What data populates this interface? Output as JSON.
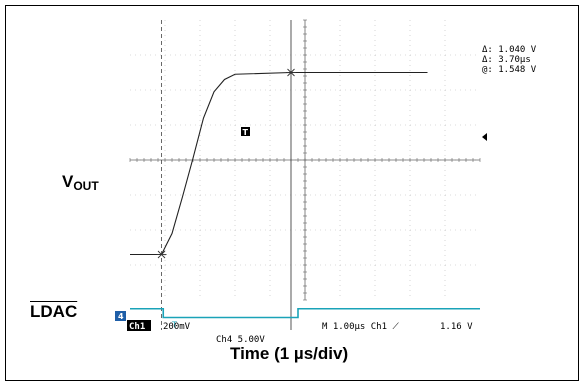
{
  "chart_data": {
    "type": "line",
    "title": "",
    "xlabel": "Time (1 µs/div)",
    "ylabel": "",
    "grid": true,
    "series": [
      {
        "name": "VOUT",
        "unit_per_div": "200mV",
        "points": [
          [
            0,
            0.0
          ],
          [
            0.9,
            0.0
          ],
          [
            1.2,
            0.12
          ],
          [
            1.5,
            0.33
          ],
          [
            1.8,
            0.55
          ],
          [
            2.1,
            0.78
          ],
          [
            2.4,
            0.93
          ],
          [
            2.7,
            1.0
          ],
          [
            3.0,
            1.03
          ],
          [
            4.6,
            1.04
          ],
          [
            8.5,
            1.04
          ]
        ]
      },
      {
        "name": "LDAC",
        "unit_per_div": "5.00V",
        "points": [
          [
            0,
            5.0
          ],
          [
            0.95,
            5.0
          ],
          [
            0.95,
            0.0
          ],
          [
            4.8,
            0.0
          ],
          [
            4.8,
            5.0
          ],
          [
            10,
            5.0
          ]
        ]
      }
    ],
    "cursor_readout": {
      "delta_v": "Δ: 1.040 V",
      "delta_t": "Δ: 3.70µs",
      "at_v": "@: 1.548 V"
    },
    "status_bar": {
      "ch1_tag": "Ch1",
      "ch1_scale": "200mV",
      "ch4": "Ch4   5.00V",
      "timebase": "M 1.00µs  Ch1 ⟋",
      "trigger_level": "1.16 V"
    },
    "markers": {
      "trigger": "T",
      "ch1_ref": "1",
      "ch4_ref": "4"
    }
  },
  "labels": {
    "vout_main": "V",
    "vout_sub": "OUT",
    "ldac": "LDAC"
  }
}
